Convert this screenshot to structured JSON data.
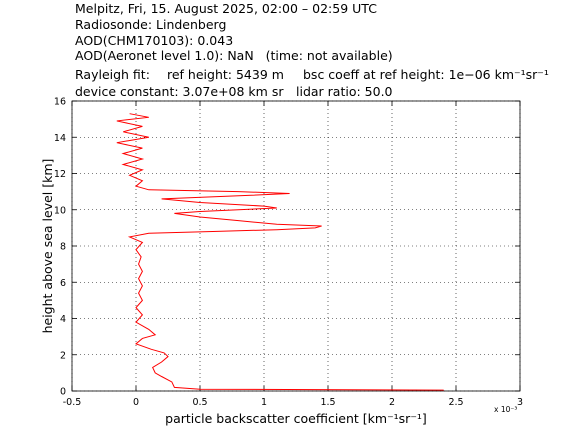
{
  "chart_data": {
    "type": "line",
    "header": {
      "line1": "Melpitz, Fri, 15. August 2025, 02:00 – 02:59 UTC",
      "line2": "Radiosonde: Lindenberg",
      "line3": "AOD(CHM170103): 0.043",
      "line4": "AOD(Aeronet level 1.0): NaN   (time: not available)",
      "line5": [
        "Rayleigh fit:",
        "ref height: 5439 m",
        "bsc coeff at ref height: 1e−06 km⁻¹sr⁻¹"
      ],
      "line6": [
        "device constant: 3.07e+08 km sr",
        "lidar ratio: 50.0"
      ]
    },
    "xlabel": "particle backscatter coefficient [km⁻¹sr⁻¹]",
    "ylabel": "height above sea level [km]",
    "x_multiplier": "x 10⁻³",
    "xlim": [
      -0.5,
      3
    ],
    "ylim": [
      0,
      16
    ],
    "xticks": [
      -0.5,
      0,
      0.5,
      1,
      1.5,
      2,
      2.5,
      3
    ],
    "yticks": [
      0,
      2,
      4,
      6,
      8,
      10,
      12,
      14,
      16
    ],
    "grid": true,
    "series": [
      {
        "color": "#ff0000",
        "x": [
          2.4,
          2.4,
          0.5,
          0.3,
          0.28,
          0.2,
          0.15,
          0.13,
          0.2,
          0.25,
          0.22,
          0.12,
          0.0,
          0.05,
          0.15,
          0.1,
          0.0,
          0.05,
          0.0,
          0.05,
          0.02,
          0.05,
          0.02,
          0.05,
          0.02,
          0.04,
          0.0,
          0.05,
          -0.05,
          0.1,
          0.6,
          1.1,
          1.4,
          1.45,
          1.1,
          0.8,
          0.5,
          0.3,
          0.5,
          0.8,
          1.1,
          1.0,
          0.5,
          0.2,
          0.9,
          1.2,
          0.8,
          0.1,
          0.0,
          0.05,
          -0.05,
          0.05,
          -0.1,
          0.05,
          -0.1,
          0.05,
          -0.15,
          0.1,
          -0.1,
          0.05,
          -0.15,
          0.1,
          -0.05
        ],
        "y": [
          0.0,
          0.05,
          0.1,
          0.2,
          0.5,
          0.8,
          1.0,
          1.3,
          1.6,
          1.9,
          2.1,
          2.3,
          2.6,
          2.9,
          3.1,
          3.4,
          3.8,
          4.2,
          4.6,
          5.0,
          5.4,
          5.8,
          6.2,
          6.6,
          7.0,
          7.4,
          7.8,
          8.2,
          8.5,
          8.7,
          8.8,
          8.9,
          9.0,
          9.1,
          9.2,
          9.4,
          9.6,
          9.8,
          9.9,
          10.0,
          10.1,
          10.2,
          10.4,
          10.6,
          10.8,
          10.9,
          11.0,
          11.1,
          11.3,
          11.6,
          11.9,
          12.2,
          12.5,
          12.8,
          13.1,
          13.4,
          13.7,
          14.0,
          14.3,
          14.6,
          14.9,
          15.1,
          15.3
        ]
      }
    ]
  }
}
